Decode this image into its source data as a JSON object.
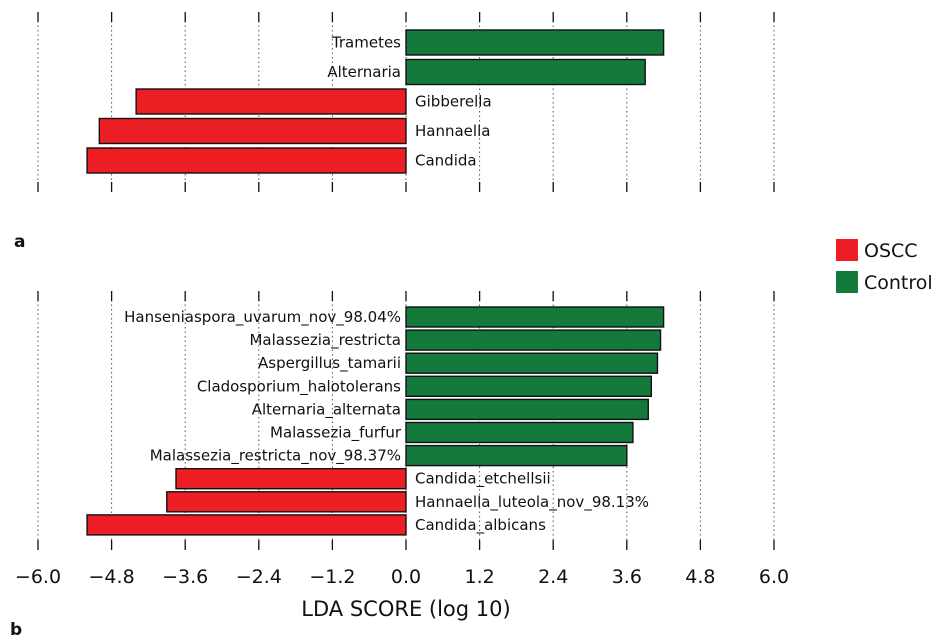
{
  "chart_data": [
    {
      "panel_label": "a",
      "type": "bar",
      "orientation": "horizontal",
      "categories": [
        "Trametes",
        "Alternaria",
        "Gibberella",
        "Hannaella",
        "Candida"
      ],
      "values": [
        4.2,
        3.9,
        -4.4,
        -5.0,
        -5.2
      ],
      "groups": [
        "Control",
        "Control",
        "OSCC",
        "OSCC",
        "OSCC"
      ],
      "xlim": [
        -6.0,
        6.0
      ],
      "grid": true
    },
    {
      "panel_label": "b",
      "type": "bar",
      "orientation": "horizontal",
      "categories": [
        "Hanseniaspora_uvarum_nov_98.04%",
        "Malassezia_restricta",
        "Aspergillus_tamarii",
        "Cladosporium_halotolerans",
        "Alternaria_alternata",
        "Malassezia_furfur",
        "Malassezia_restricta_nov_98.37%",
        "Candida_etchellsii",
        "Hannaella_luteola_nov_98.13%",
        "Candida_albicans"
      ],
      "values": [
        4.2,
        4.15,
        4.1,
        4.0,
        3.95,
        3.7,
        3.6,
        -3.75,
        -3.9,
        -5.2
      ],
      "groups": [
        "Control",
        "Control",
        "Control",
        "Control",
        "Control",
        "Control",
        "Control",
        "OSCC",
        "OSCC",
        "OSCC"
      ],
      "xlim": [
        -6.0,
        6.0
      ],
      "xticks": [
        "−6.0",
        "−4.8",
        "−3.6",
        "−2.4",
        "−1.2",
        "0.0",
        "1.2",
        "2.4",
        "3.6",
        "4.8",
        "6.0"
      ],
      "xlabel": "LDA SCORE (log 10)",
      "grid": true
    }
  ],
  "legend": {
    "placement": "right",
    "entries": [
      {
        "name": "OSCC",
        "color": "#ee1f24"
      },
      {
        "name": "Control",
        "color": "#137a3c"
      }
    ]
  }
}
